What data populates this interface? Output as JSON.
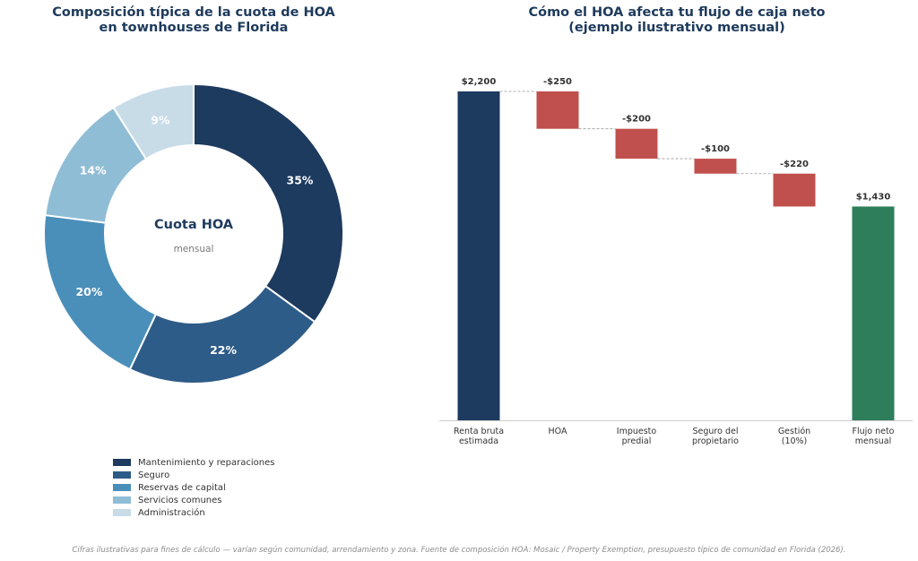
{
  "chart_data": [
    {
      "type": "pie",
      "title": "Composición típica de la cuota de HOA\nen townhouses de Florida",
      "center_label": "Cuota HOA",
      "center_sublabel": "mensual",
      "categories": [
        "Mantenimiento y reparaciones",
        "Seguro",
        "Reservas de capital",
        "Servicios comunes",
        "Administración"
      ],
      "values": [
        35,
        22,
        20,
        14,
        9
      ],
      "value_labels": [
        "35%",
        "22%",
        "20%",
        "14%",
        "9%"
      ],
      "colors": [
        "#1d3a5f",
        "#2e5c88",
        "#4a8fba",
        "#8fbdd6",
        "#c8dce8"
      ],
      "legend_position": "bottom"
    },
    {
      "type": "bar",
      "subtype": "waterfall",
      "title": "Cómo el HOA afecta tu flujo de caja neto\n(ejemplo ilustrativo mensual)",
      "categories": [
        "Renta bruta\nestimada",
        "HOA",
        "Impuesto\npredial",
        "Seguro del\npropietario",
        "Gestión\n(10%)",
        "Flujo neto\nmensual"
      ],
      "values": [
        2200,
        -250,
        -200,
        -100,
        -220,
        1430
      ],
      "value_labels": [
        "$2,200",
        "-$250",
        "-$200",
        "-$100",
        "-$220",
        "$1,430"
      ],
      "kinds": [
        "total",
        "delta",
        "delta",
        "delta",
        "delta",
        "total"
      ],
      "colors": [
        "#1d3a5f",
        "#c0504d",
        "#c0504d",
        "#c0504d",
        "#c0504d",
        "#2e7d5b"
      ],
      "ylim": [
        0,
        2200
      ]
    }
  ],
  "footnote": "Cifras ilustrativas para fines de cálculo — varían según comunidad, arrendamiento y zona. Fuente de composición HOA: Mosaic / Property Exemption, presupuesto típico de comunidad en Florida (2026)."
}
